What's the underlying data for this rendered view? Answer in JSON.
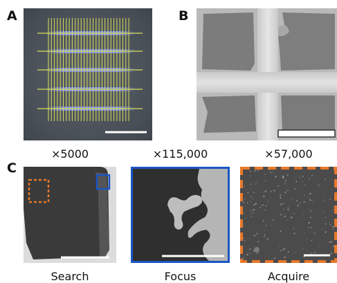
{
  "panels": {
    "a": {
      "letter": "A"
    },
    "b": {
      "letter": "B"
    },
    "c": {
      "letter": "C",
      "search": {
        "magnification": "×5000",
        "caption": "Search"
      },
      "focus": {
        "magnification": "×115,000",
        "caption": "Focus"
      },
      "acquire": {
        "magnification": "×57,000",
        "caption": "Acquire"
      }
    }
  },
  "colors": {
    "grid_lines": "#d8e05a",
    "grid_glow": "#7d8cff",
    "focus_box": "#1a56c4",
    "acquire_box": "#e8782a",
    "scale_bar": "#ffffff"
  }
}
